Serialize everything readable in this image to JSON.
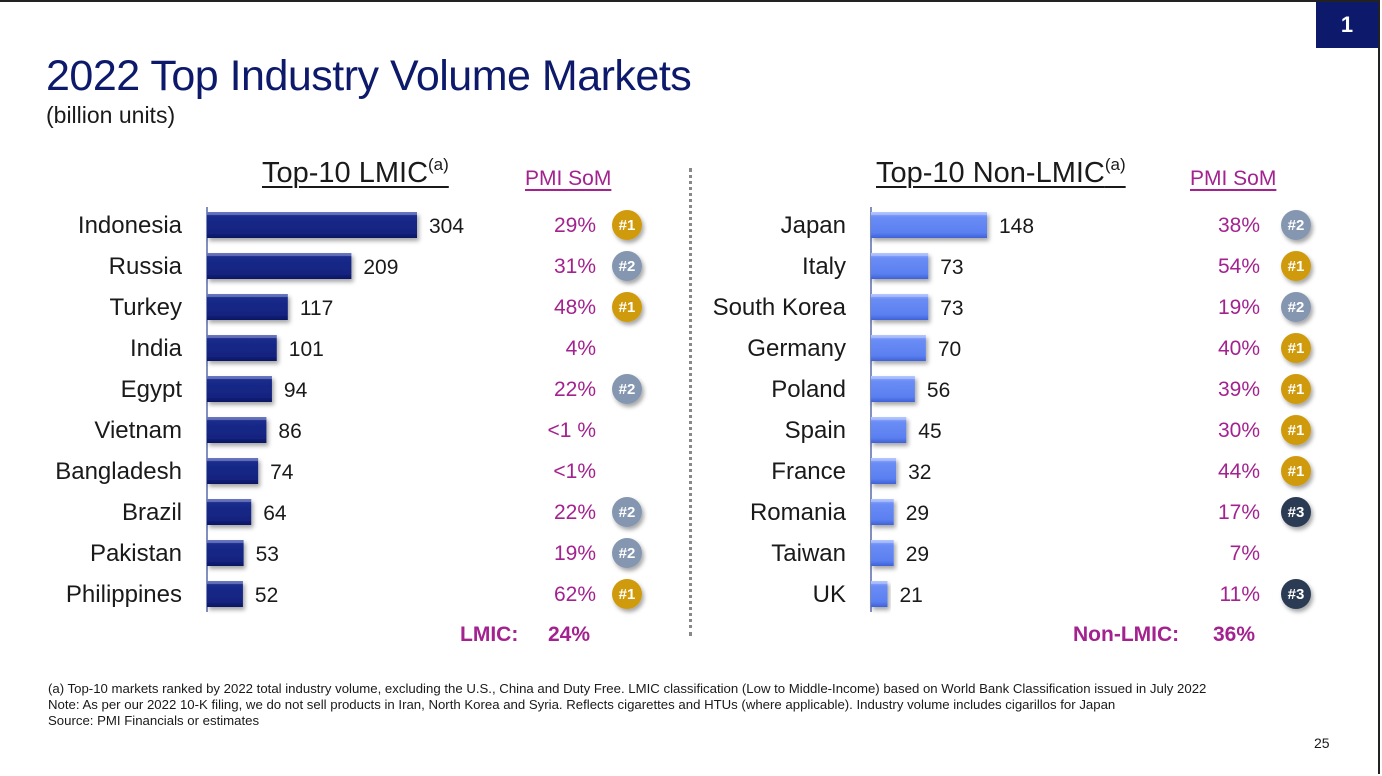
{
  "slide": {
    "badge_number": "1",
    "title": "2022 Top Industry Volume Markets",
    "subtitle": "(billion units)",
    "page_number": "25"
  },
  "colors": {
    "title": "#0d1a6b",
    "lmic_bar": "#14237f",
    "non_lmic_bar": "#5a7ff0",
    "som_text": "#a3228f",
    "rank_1": "#d09a0a",
    "rank_2": "#8496b0",
    "rank_3": "#2c3a52"
  },
  "chart_data": [
    {
      "type": "bar",
      "orientation": "horizontal",
      "title": "Top-10 LMIC",
      "title_superscript": "(a)",
      "unit": "billion units",
      "categories": [
        "Indonesia",
        "Russia",
        "Turkey",
        "India",
        "Egypt",
        "Vietnam",
        "Bangladesh",
        "Brazil",
        "Pakistan",
        "Philippines"
      ],
      "values": [
        304,
        209,
        117,
        101,
        94,
        86,
        74,
        64,
        53,
        52
      ],
      "som_header": "PMI SoM",
      "pmi_som": [
        "29%",
        "31%",
        "48%",
        "4%",
        "22%",
        "<1 %",
        "<1%",
        "22%",
        "19%",
        "62%"
      ],
      "rank": [
        "#1",
        "#2",
        "#1",
        "",
        "#2",
        "",
        "",
        "#2",
        "#2",
        "#1"
      ],
      "total_label": "LMIC:",
      "total_value": "24%"
    },
    {
      "type": "bar",
      "orientation": "horizontal",
      "title": "Top-10 Non-LMIC",
      "title_superscript": "(a)",
      "unit": "billion units",
      "categories": [
        "Japan",
        "Italy",
        "South Korea",
        "Germany",
        "Poland",
        "Spain",
        "France",
        "Romania",
        "Taiwan",
        "UK"
      ],
      "values": [
        148,
        73,
        73,
        70,
        56,
        45,
        32,
        29,
        29,
        21
      ],
      "som_header": "PMI SoM",
      "pmi_som": [
        "38%",
        "54%",
        "19%",
        "40%",
        "39%",
        "30%",
        "44%",
        "17%",
        "7%",
        "11%"
      ],
      "rank": [
        "#2",
        "#1",
        "#2",
        "#1",
        "#1",
        "#1",
        "#1",
        "#3",
        "",
        "#3"
      ],
      "total_label": "Non-LMIC:",
      "total_value": "36%"
    }
  ],
  "footnotes": [
    "(a) Top-10 markets ranked by 2022 total industry volume, excluding the U.S., China and Duty Free. LMIC classification (Low to Middle-Income) based on World Bank Classification issued in July 2022",
    "Note: As per our 2022 10-K filing, we do not sell products in Iran, North Korea and Syria. Reflects cigarettes and HTUs (where applicable). Industry volume includes cigarillos for Japan",
    "Source: PMI Financials or estimates"
  ]
}
